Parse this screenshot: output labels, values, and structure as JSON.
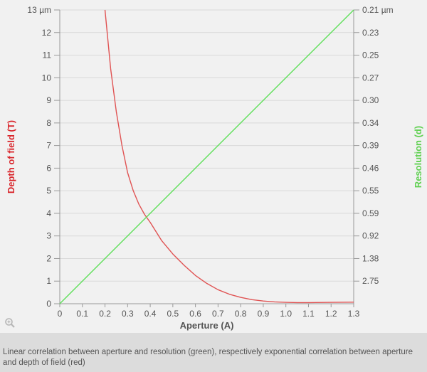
{
  "caption": "Linear correlation between aperture and resolution (green), respectively exponential correlation between aperture and depth of field (red)",
  "colors": {
    "depth_line": "#e05353",
    "resolution_line": "#5fe05a",
    "grid": "#d9d9d9",
    "axis": "#999999",
    "depth_label": "#d9262c",
    "resolution_label": "#5fd050",
    "xlabel": "#555555"
  },
  "icons": {
    "zoom": "zoom-icon"
  },
  "chart_data": {
    "type": "line",
    "title": "",
    "xlabel": "Aperture (A)",
    "ylabel": "Depth of field (T)",
    "y2label": "Resolution (d)",
    "xlim": [
      0,
      1.3
    ],
    "ylim": [
      0,
      13
    ],
    "x_ticks": [
      "0",
      "0.1",
      "0.2",
      "0.3",
      "0.4",
      "0.5",
      "0.6",
      "0.7",
      "0.8",
      "0.9",
      "1.0",
      "1.1",
      "1.2",
      "1.3"
    ],
    "x_tick_values": [
      0,
      0.1,
      0.2,
      0.3,
      0.4,
      0.5,
      0.6,
      0.7,
      0.8,
      0.9,
      1.0,
      1.1,
      1.2,
      1.3
    ],
    "y_ticks": [
      "0",
      "1",
      "2",
      "3",
      "4",
      "5",
      "6",
      "7",
      "8",
      "9",
      "10",
      "11",
      "12",
      "13 µm"
    ],
    "y_tick_values": [
      0,
      1,
      2,
      3,
      4,
      5,
      6,
      7,
      8,
      9,
      10,
      11,
      12,
      13
    ],
    "y2_ticks": [
      "2.75",
      "1.38",
      "0.92",
      "0.59",
      "0.55",
      "0.46",
      "0.39",
      "0.34",
      "0.30",
      "0.27",
      "0.25",
      "0.23",
      "0.21 µm"
    ],
    "y2_tick_values": [
      1,
      2,
      3,
      4,
      5,
      6,
      7,
      8,
      9,
      10,
      11,
      12,
      13
    ],
    "grid": true,
    "series": [
      {
        "name": "Depth of field",
        "axis": "left",
        "x": [
          0.2,
          0.225,
          0.25,
          0.275,
          0.3,
          0.325,
          0.35,
          0.375,
          0.4,
          0.45,
          0.5,
          0.55,
          0.6,
          0.65,
          0.7,
          0.75,
          0.8,
          0.85,
          0.9,
          0.95,
          1.0,
          1.05,
          1.1,
          1.2,
          1.3
        ],
        "y": [
          13,
          10.4,
          8.5,
          7.0,
          5.8,
          5.0,
          4.4,
          3.95,
          3.6,
          2.8,
          2.2,
          1.7,
          1.25,
          0.9,
          0.62,
          0.42,
          0.28,
          0.18,
          0.12,
          0.08,
          0.06,
          0.05,
          0.05,
          0.06,
          0.07
        ]
      },
      {
        "name": "Resolution",
        "axis": "left",
        "x": [
          0,
          1.3
        ],
        "y": [
          0,
          13
        ]
      }
    ]
  }
}
